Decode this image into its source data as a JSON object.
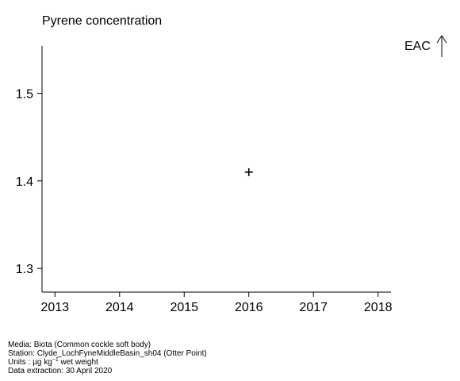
{
  "chart_data": {
    "type": "scatter",
    "title": "Pyrene concentration",
    "xlabel": "",
    "ylabel": "",
    "x_ticks": [
      2013,
      2014,
      2015,
      2016,
      2017,
      2018
    ],
    "y_ticks": [
      1.3,
      1.4,
      1.5
    ],
    "xlim": [
      2012.8,
      2018.2
    ],
    "ylim": [
      1.273,
      1.554
    ],
    "grid": false,
    "points": [
      {
        "x": 2016,
        "y": 1.41,
        "marker": "+"
      }
    ],
    "annotations": [
      {
        "text": "EAC",
        "arrow": "up"
      }
    ]
  },
  "footer": {
    "media": "Media: Biota (Common cockle soft body)",
    "station": "Station: Clyde_LochFyneMiddleBasin_sh04 (Otter Point)",
    "units_prefix": "Units :  µg kg",
    "units_exp": "−1",
    "units_suffix": " wet weight",
    "extraction": "Data extraction: 30 April 2020"
  }
}
